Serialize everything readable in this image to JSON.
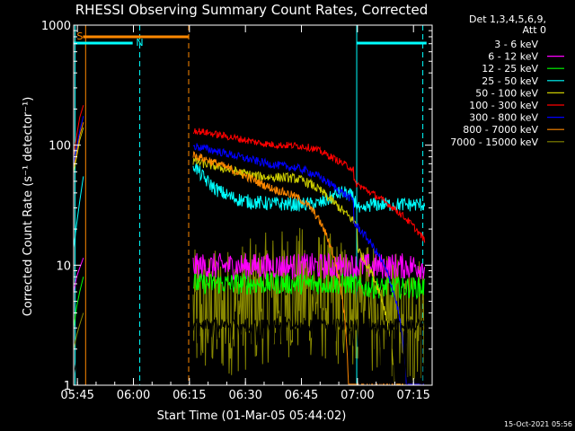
{
  "chart_data": {
    "type": "line",
    "title": "RHESSI Observing Summary Count Rates, Corrected",
    "xlabel": "Start Time (01-Mar-05 05:44:02)",
    "ylabel": "Corrected Count Rate (s⁻¹ detector⁻¹)",
    "yscale": "log",
    "ylim": [
      1,
      1000
    ],
    "xlim_minutes": [
      0,
      96
    ],
    "x_ticks": [
      {
        "label": "05:45",
        "minute": 1
      },
      {
        "label": "06:00",
        "minute": 16
      },
      {
        "label": "06:15",
        "minute": 31
      },
      {
        "label": "06:30",
        "minute": 46
      },
      {
        "label": "06:45",
        "minute": 61
      },
      {
        "label": "07:00",
        "minute": 76
      },
      {
        "label": "07:15",
        "minute": 91
      }
    ],
    "y_ticks": [
      {
        "label": "1",
        "value": 1
      },
      {
        "label": "10",
        "value": 10
      },
      {
        "label": "100",
        "value": 100
      },
      {
        "label": "1000",
        "value": 1000
      }
    ],
    "legend_header": [
      "Det 1,3,4,5,6,9,",
      "Att 0"
    ],
    "legend_position": "right",
    "series": [
      {
        "name": "3 - 6 keV",
        "color": "#000000"
      },
      {
        "name": "6 - 12 keV",
        "color": "#ff00ff"
      },
      {
        "name": "12 - 25 keV",
        "color": "#00ff00"
      },
      {
        "name": "25 - 50 keV",
        "color": "#00ffff"
      },
      {
        "name": "50 - 100 keV",
        "color": "#cccc00"
      },
      {
        "name": "100 - 300 keV",
        "color": "#ff0000"
      },
      {
        "name": "300 - 800 keV",
        "color": "#0000ff"
      },
      {
        "name": "800 - 7000 keV",
        "color": "#ff8800"
      },
      {
        "name": "7000 - 15000 keV",
        "color": "#888800"
      }
    ],
    "annotations": {
      "saa_label": "S",
      "night_label": "N",
      "footer": "15-Oct-2021 05:56"
    }
  }
}
